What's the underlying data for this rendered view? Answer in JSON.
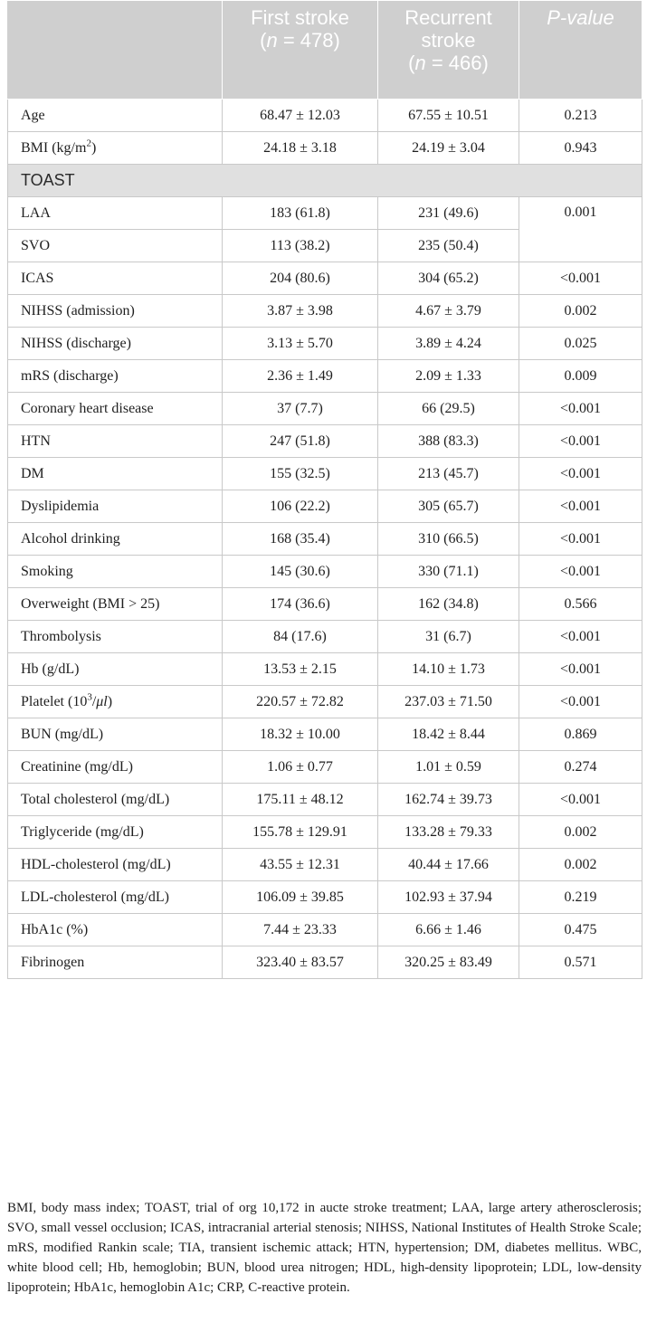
{
  "header": {
    "col1": "",
    "col2_line1": "First stroke",
    "col2_n_open": "(",
    "col2_n_var": "n",
    "col2_n_rest": " = 478)",
    "col3_line1": "Recurrent",
    "col3_line2": "stroke",
    "col3_n_open": "(",
    "col3_n_var": "n",
    "col3_n_rest": " = 466)",
    "col4": "P-value"
  },
  "rows_top": [
    {
      "label": "Age",
      "first": "68.47 ± 12.03",
      "recurrent": "67.55 ± 10.51",
      "p": "0.213"
    }
  ],
  "bmi_row": {
    "label_pre": "BMI (kg/m",
    "label_sup": "2",
    "label_post": ")",
    "first": "24.18 ± 3.18",
    "recurrent": "24.19 ± 3.04",
    "p": "0.943"
  },
  "section": {
    "label": "TOAST"
  },
  "toast_rows": [
    {
      "label": "LAA",
      "first": "183 (61.8)",
      "recurrent": "231 (49.6)"
    },
    {
      "label": "SVO",
      "first": "113 (38.2)",
      "recurrent": "235 (50.4)"
    }
  ],
  "toast_p": "0.001",
  "rows_mid": [
    {
      "label": "ICAS",
      "first": "204 (80.6)",
      "recurrent": "304 (65.2)",
      "p": "<0.001"
    },
    {
      "label": "NIHSS (admission)",
      "first": "3.87 ± 3.98",
      "recurrent": "4.67 ± 3.79",
      "p": "0.002"
    },
    {
      "label": "NIHSS (discharge)",
      "first": "3.13 ± 5.70",
      "recurrent": "3.89 ± 4.24",
      "p": "0.025"
    },
    {
      "label": "mRS (discharge)",
      "first": "2.36 ± 1.49",
      "recurrent": "2.09 ± 1.33",
      "p": "0.009"
    },
    {
      "label": "Coronary heart disease",
      "first": "37 (7.7)",
      "recurrent": "66 (29.5)",
      "p": "<0.001"
    },
    {
      "label": "HTN",
      "first": "247 (51.8)",
      "recurrent": "388 (83.3)",
      "p": "<0.001"
    },
    {
      "label": "DM",
      "first": "155 (32.5)",
      "recurrent": "213 (45.7)",
      "p": "<0.001"
    },
    {
      "label": "Dyslipidemia",
      "first": "106 (22.2)",
      "recurrent": "305 (65.7)",
      "p": "<0.001"
    },
    {
      "label": "Alcohol drinking",
      "first": "168 (35.4)",
      "recurrent": "310 (66.5)",
      "p": "<0.001"
    },
    {
      "label": "Smoking",
      "first": "145 (30.6)",
      "recurrent": "330 (71.1)",
      "p": "<0.001"
    },
    {
      "label": "Overweight (BMI > 25)",
      "first": "174 (36.6)",
      "recurrent": "162 (34.8)",
      "p": "0.566"
    },
    {
      "label": "Thrombolysis",
      "first": "84 (17.6)",
      "recurrent": "31 (6.7)",
      "p": "<0.001"
    },
    {
      "label": "Hb (g/dL)",
      "first": "13.53 ± 2.15",
      "recurrent": "14.10 ± 1.73",
      "p": "<0.001"
    }
  ],
  "platelet_row": {
    "label_pre": "Platelet (10",
    "label_sup": "3",
    "label_post": "/",
    "label_ital": "μl",
    "label_end": ")",
    "first": "220.57 ± 72.82",
    "recurrent": "237.03 ± 71.50",
    "p": "<0.001"
  },
  "rows_bottom": [
    {
      "label": "BUN (mg/dL)",
      "first": "18.32 ± 10.00",
      "recurrent": "18.42 ± 8.44",
      "p": "0.869"
    },
    {
      "label": "Creatinine (mg/dL)",
      "first": "1.06 ± 0.77",
      "recurrent": "1.01 ± 0.59",
      "p": "0.274"
    },
    {
      "label": "Total cholesterol (mg/dL)",
      "first": "175.11 ± 48.12",
      "recurrent": "162.74 ± 39.73",
      "p": "<0.001"
    },
    {
      "label": "Triglyceride (mg/dL)",
      "first": "155.78 ± 129.91",
      "recurrent": "133.28 ± 79.33",
      "p": "0.002"
    },
    {
      "label": "HDL-cholesterol (mg/dL)",
      "first": "43.55 ± 12.31",
      "recurrent": "40.44 ± 17.66",
      "p": "0.002"
    },
    {
      "label": "LDL-cholesterol (mg/dL)",
      "first": "106.09 ± 39.85",
      "recurrent": "102.93 ± 37.94",
      "p": "0.219"
    },
    {
      "label": "HbA1c (%)",
      "first": "7.44 ± 23.33",
      "recurrent": "6.66 ± 1.46",
      "p": "0.475"
    },
    {
      "label": "Fibrinogen",
      "first": "323.40 ± 83.57",
      "recurrent": "320.25 ± 83.49",
      "p": "0.571"
    }
  ],
  "footnote": "BMI, body mass index; TOAST, trial of org 10,172 in aucte stroke treatment; LAA, large artery atherosclerosis; SVO, small vessel occlusion; ICAS, intracranial arterial stenosis; NIHSS, National Institutes of Health Stroke Scale; mRS, modified Rankin scale; TIA, transient ischemic attack; HTN, hypertension; DM, diabetes mellitus. WBC, white blood cell; Hb, hemoglobin; BUN, blood urea nitrogen; HDL, high-density lipoprotein; LDL, low-density lipoprotein; HbA1c, hemoglobin A1c; CRP, C-reactive protein."
}
